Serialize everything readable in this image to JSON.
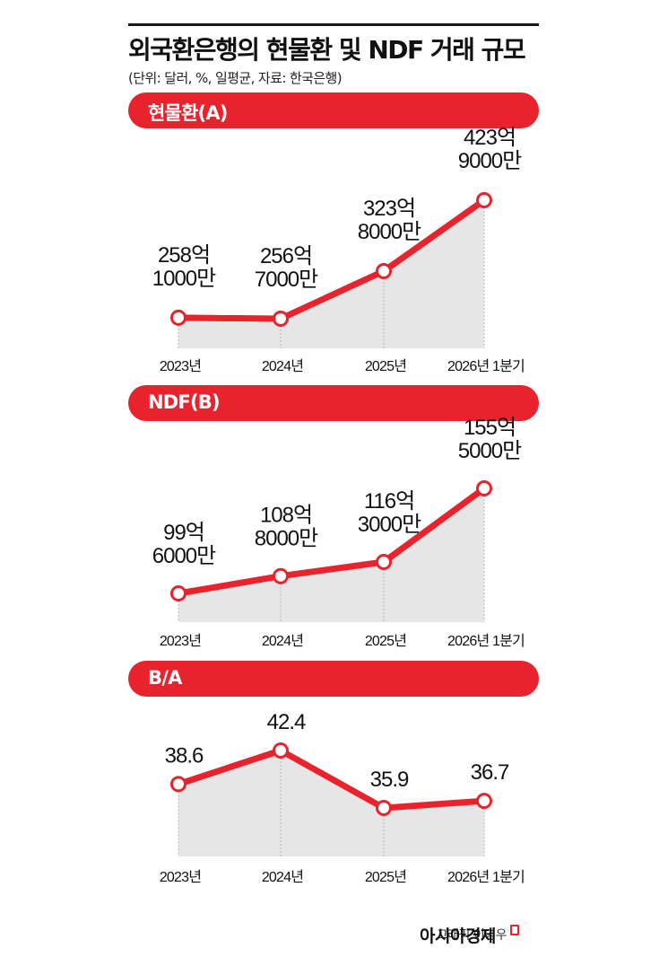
{
  "header": {
    "title": "외국환은행의 현물환 및 NDF 거래 규모",
    "subtitle": "(단위: 달러, %, 일평균, 자료: 한국은행)"
  },
  "footer": {
    "credit": "그래픽 이영우",
    "brand": "아시아경제"
  },
  "colors": {
    "accent": "#e8232d",
    "area": "#e6e6e6",
    "text": "#111111"
  },
  "chart_data": [
    {
      "type": "line",
      "title": "현물환(A)",
      "categories": [
        "2023년",
        "2024년",
        "2025년",
        "2026년 1분기"
      ],
      "values": [
        25810000000,
        25670000000,
        32380000000,
        42390000000
      ],
      "labels": [
        [
          "258억",
          "1000만"
        ],
        [
          "256억",
          "7000만"
        ],
        [
          "323억",
          "8000만"
        ],
        [
          "423억",
          "9000만"
        ]
      ],
      "area_fill": true
    },
    {
      "type": "line",
      "title": "NDF(B)",
      "categories": [
        "2023년",
        "2024년",
        "2025년",
        "2026년 1분기"
      ],
      "values": [
        9960000000,
        10880000000,
        11630000000,
        15550000000
      ],
      "labels": [
        [
          "99억",
          "6000만"
        ],
        [
          "108억",
          "8000만"
        ],
        [
          "116억",
          "3000만"
        ],
        [
          "155억",
          "5000만"
        ]
      ],
      "area_fill": true
    },
    {
      "type": "line",
      "title": "B/A",
      "categories": [
        "2023년",
        "2024년",
        "2025년",
        "2026년 1분기"
      ],
      "values": [
        38.6,
        42.4,
        35.9,
        36.7
      ],
      "labels": [
        [
          "38.6"
        ],
        [
          "42.4"
        ],
        [
          "35.9"
        ],
        [
          "36.7"
        ]
      ],
      "area_fill": true
    }
  ]
}
